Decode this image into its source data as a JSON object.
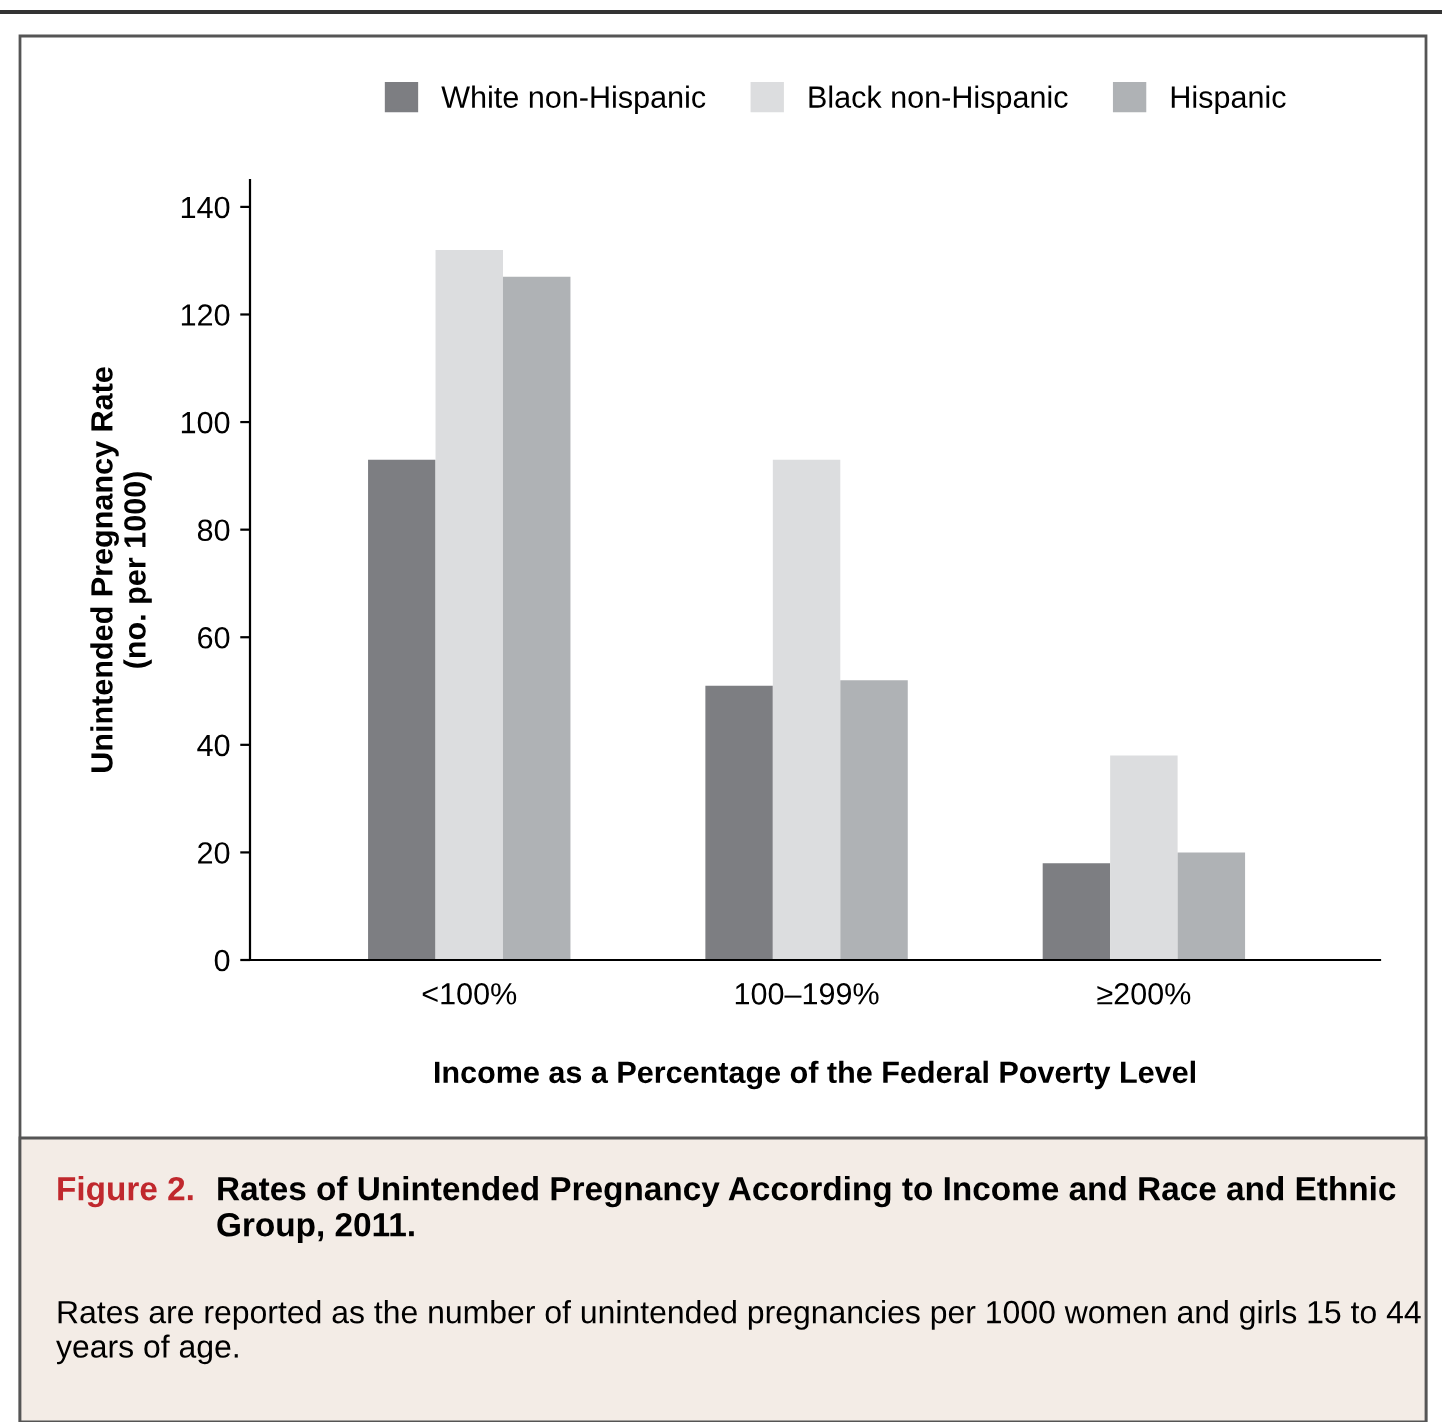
{
  "chart_data": {
    "type": "bar",
    "title": "Figure 2.",
    "subtitle": "Rates of Unintended Pregnancy According to Income and Race and Ethnic Group, 2011.",
    "annotations": [
      "Rates are reported as the number of unintended pregnancies per 1000 women and girls 15 to 44 years of age."
    ],
    "xlabel": "Income as a Percentage of the Federal Poverty Level",
    "ylabel": "Unintended Pregnancy Rate\n(no. per 1000)",
    "categories": [
      "<100%",
      "100–199%",
      "≥200%"
    ],
    "series": [
      {
        "name": "White non-Hispanic",
        "color": "#7d7e82",
        "values": [
          93,
          51,
          18
        ]
      },
      {
        "name": "Black non-Hispanic",
        "color": "#dcdddf",
        "values": [
          132,
          93,
          38
        ]
      },
      {
        "name": "Hispanic",
        "color": "#afb2b5",
        "values": [
          127,
          52,
          20
        ]
      }
    ],
    "ylim": [
      0,
      145
    ],
    "yticks": [
      0,
      20,
      40,
      60,
      80,
      100,
      120,
      140
    ],
    "grid": false,
    "legend": "top"
  }
}
